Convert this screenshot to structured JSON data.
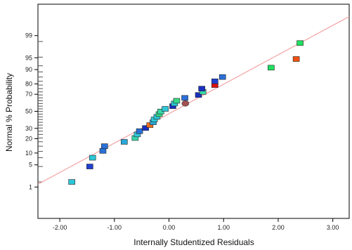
{
  "chart_data": {
    "type": "scatter",
    "xlabel": "Internally Studentized Residuals",
    "ylabel": "Normal % Probability",
    "xlim": [
      -2.4,
      3.3
    ],
    "ylim": [
      0.05,
      99.95
    ],
    "y_scale": "normal-probability",
    "x_ticks": [
      {
        "value": -2.0,
        "label": "-2.00"
      },
      {
        "value": -1.0,
        "label": "-1.00"
      },
      {
        "value": 0.0,
        "label": "0.00"
      },
      {
        "value": 1.0,
        "label": "1.00"
      },
      {
        "value": 2.0,
        "label": "2.00"
      },
      {
        "value": 3.0,
        "label": "3.00"
      }
    ],
    "y_ticks": [
      {
        "value": 1,
        "label": "1"
      },
      {
        "value": 5,
        "label": "5"
      },
      {
        "value": 10,
        "label": "10"
      },
      {
        "value": 20,
        "label": "20"
      },
      {
        "value": 30,
        "label": "30"
      },
      {
        "value": 50,
        "label": "50"
      },
      {
        "value": 70,
        "label": "70"
      },
      {
        "value": 80,
        "label": "80"
      },
      {
        "value": 90,
        "label": "90"
      },
      {
        "value": 95,
        "label": "95"
      },
      {
        "value": 99,
        "label": "99"
      }
    ],
    "y_rug": [
      1.5,
      4.5,
      7.7,
      10.9,
      14.2,
      17.5,
      20.6,
      23.9,
      27.1,
      30.4,
      33.6,
      36.8,
      40.1,
      43.3,
      46.6,
      49.8,
      53.0,
      56.3,
      59.5,
      62.7,
      66.0,
      69.2,
      72.5,
      75.7,
      79.0,
      82.2,
      85.4,
      88.7,
      91.9,
      95.2,
      98.4
    ],
    "reference_line": {
      "color": "#f4a4a4",
      "points": [
        [
          -2.4,
          1.25
        ],
        [
          3.3,
          99.82
        ]
      ]
    },
    "grid": false,
    "legend": "none",
    "points": [
      {
        "x": -1.78,
        "y": 1.5,
        "color": "#2ec8d8",
        "shape": "square"
      },
      {
        "x": -1.45,
        "y": 4.5,
        "color": "#2040d0",
        "shape": "square"
      },
      {
        "x": -1.4,
        "y": 7.7,
        "color": "#2ec8d8",
        "shape": "square"
      },
      {
        "x": -1.21,
        "y": 11.2,
        "color": "#2a70d8",
        "shape": "square"
      },
      {
        "x": -1.18,
        "y": 14.2,
        "color": "#2a70d8",
        "shape": "square"
      },
      {
        "x": -0.82,
        "y": 17.4,
        "color": "#2aa8d8",
        "shape": "square"
      },
      {
        "x": -0.62,
        "y": 20.6,
        "color": "#38d8a8",
        "shape": "square"
      },
      {
        "x": -0.58,
        "y": 23.9,
        "color": "#2ec8d8",
        "shape": "square"
      },
      {
        "x": -0.54,
        "y": 27.1,
        "color": "#2a70d8",
        "shape": "square"
      },
      {
        "x": -0.43,
        "y": 30.4,
        "color": "#1a30c0",
        "shape": "square"
      },
      {
        "x": -0.35,
        "y": 33.6,
        "color": "#f07020",
        "shape": "square"
      },
      {
        "x": -0.29,
        "y": 36.8,
        "color": "#2aa8d8",
        "shape": "square"
      },
      {
        "x": -0.27,
        "y": 40.1,
        "color": "#2ec8d8",
        "shape": "square"
      },
      {
        "x": -0.22,
        "y": 43.3,
        "color": "#2ec8d8",
        "shape": "square"
      },
      {
        "x": -0.18,
        "y": 46.6,
        "color": "#38d888",
        "shape": "square"
      },
      {
        "x": -0.15,
        "y": 49.8,
        "color": "#38d8a8",
        "shape": "square"
      },
      {
        "x": -0.07,
        "y": 53.0,
        "color": "#2ec8d8",
        "shape": "square"
      },
      {
        "x": 0.07,
        "y": 56.3,
        "color": "#1a30c0",
        "shape": "square"
      },
      {
        "x": 0.1,
        "y": 59.5,
        "color": "#2ec8d8",
        "shape": "square"
      },
      {
        "x": 0.14,
        "y": 62.7,
        "color": "#38d888",
        "shape": "square"
      },
      {
        "x": 0.3,
        "y": 59.5,
        "color": "#a05050",
        "shape": "ellipse"
      },
      {
        "x": 0.29,
        "y": 66.0,
        "color": "#2a70d8",
        "shape": "square"
      },
      {
        "x": 0.54,
        "y": 69.2,
        "color": "#1a30c0",
        "shape": "square"
      },
      {
        "x": 0.62,
        "y": 72.5,
        "color": "#38d8a8",
        "shape": "square"
      },
      {
        "x": 0.6,
        "y": 75.7,
        "color": "#1a30c0",
        "shape": "square"
      },
      {
        "x": 0.84,
        "y": 79.0,
        "color": "#e01010",
        "shape": "square"
      },
      {
        "x": 0.84,
        "y": 82.2,
        "color": "#2040d0",
        "shape": "square"
      },
      {
        "x": 0.98,
        "y": 85.4,
        "color": "#2a70d8",
        "shape": "square"
      },
      {
        "x": 1.87,
        "y": 91.0,
        "color": "#20e060",
        "shape": "square"
      },
      {
        "x": 2.33,
        "y": 94.6,
        "color": "#f05010",
        "shape": "square"
      },
      {
        "x": 2.4,
        "y": 98.2,
        "color": "#20e060",
        "shape": "square"
      }
    ]
  }
}
